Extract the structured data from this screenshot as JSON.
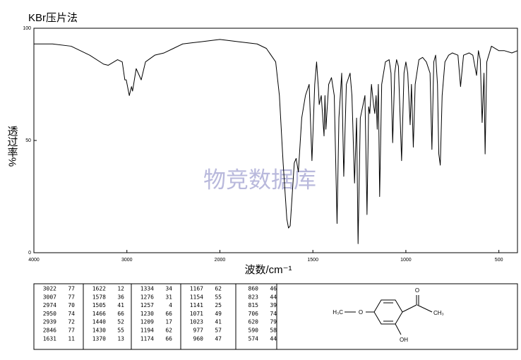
{
  "chart_data": {
    "type": "line",
    "title": "KBr压片法",
    "xlabel": "波数/cm⁻¹",
    "ylabel": "透过率%",
    "watermark": "物竞数据库",
    "color": "#000000",
    "xlim": [
      4000,
      400
    ],
    "xscale_break": 2000,
    "ylim": [
      0,
      100
    ],
    "xticks": [
      4000,
      3000,
      2000,
      1500,
      1000,
      500
    ],
    "yticks": [
      0,
      50,
      100
    ],
    "x": [
      4000,
      3800,
      3600,
      3400,
      3250,
      3200,
      3100,
      3050,
      3022,
      3007,
      2974,
      2950,
      2939,
      2900,
      2846,
      2800,
      2700,
      2600,
      2500,
      2400,
      2300,
      2200,
      2000,
      1900,
      1800,
      1750,
      1700,
      1680,
      1660,
      1640,
      1631,
      1622,
      1600,
      1590,
      1578,
      1560,
      1540,
      1520,
      1505,
      1490,
      1480,
      1470,
      1466,
      1455,
      1440,
      1435,
      1430,
      1415,
      1400,
      1385,
      1370,
      1360,
      1345,
      1334,
      1320,
      1300,
      1290,
      1276,
      1265,
      1257,
      1245,
      1230,
      1220,
      1209,
      1200,
      1194,
      1185,
      1174,
      1167,
      1160,
      1154,
      1148,
      1141,
      1130,
      1110,
      1090,
      1080,
      1071,
      1060,
      1050,
      1040,
      1023,
      1010,
      1000,
      990,
      977,
      970,
      960,
      950,
      930,
      910,
      890,
      870,
      860,
      850,
      840,
      830,
      823,
      815,
      805,
      790,
      770,
      750,
      720,
      706,
      690,
      660,
      640,
      620,
      610,
      600,
      590,
      580,
      574,
      565,
      540,
      500,
      470,
      430,
      400
    ],
    "values": [
      93,
      93,
      92,
      88,
      84,
      83.5,
      86,
      85,
      77,
      77,
      70,
      74,
      72,
      82,
      77,
      85,
      88,
      89,
      91,
      93,
      93.5,
      94,
      95,
      94,
      93,
      91,
      85,
      70,
      40,
      15,
      11,
      12,
      40,
      42,
      36,
      60,
      70,
      75,
      41,
      75,
      85,
      73,
      66,
      70,
      52,
      70,
      55,
      75,
      78,
      70,
      13,
      60,
      80,
      34,
      75,
      80,
      70,
      31,
      60,
      4,
      60,
      66,
      70,
      17,
      65,
      62,
      75,
      66,
      62,
      70,
      55,
      75,
      25,
      75,
      85,
      86,
      80,
      49,
      80,
      86,
      83,
      41,
      80,
      85,
      80,
      57,
      75,
      47,
      75,
      86,
      87,
      85,
      80,
      46,
      85,
      88,
      75,
      44,
      39,
      70,
      85,
      88,
      89,
      88,
      74,
      88,
      89,
      88,
      79,
      90,
      86,
      58,
      80,
      44,
      85,
      92,
      90,
      90,
      89,
      90
    ]
  },
  "peak_table": {
    "columns": [
      [
        [
          3022,
          77
        ],
        [
          3007,
          77
        ],
        [
          2974,
          70
        ],
        [
          2950,
          74
        ],
        [
          2939,
          72
        ],
        [
          2846,
          77
        ],
        [
          1631,
          11
        ]
      ],
      [
        [
          1622,
          12
        ],
        [
          1578,
          36
        ],
        [
          1505,
          41
        ],
        [
          1466,
          66
        ],
        [
          1440,
          52
        ],
        [
          1430,
          55
        ],
        [
          1370,
          13
        ]
      ],
      [
        [
          1334,
          34
        ],
        [
          1276,
          31
        ],
        [
          1257,
          4
        ],
        [
          1230,
          66
        ],
        [
          1209,
          17
        ],
        [
          1194,
          62
        ],
        [
          1174,
          66
        ]
      ],
      [
        [
          1167,
          62
        ],
        [
          1154,
          55
        ],
        [
          1141,
          25
        ],
        [
          1071,
          49
        ],
        [
          1023,
          41
        ],
        [
          977,
          57
        ],
        [
          960,
          47
        ]
      ],
      [
        [
          860,
          46
        ],
        [
          823,
          44
        ],
        [
          815,
          39
        ],
        [
          706,
          74
        ],
        [
          620,
          79
        ],
        [
          590,
          58
        ],
        [
          574,
          44
        ]
      ]
    ]
  },
  "structure": {
    "labels": [
      "O",
      "CH₃",
      "H₃C",
      "O",
      "OH"
    ]
  }
}
